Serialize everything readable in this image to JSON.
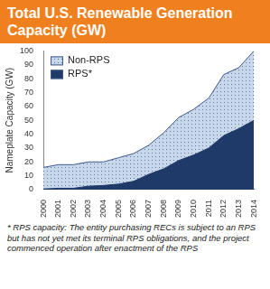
{
  "chart_data": {
    "type": "line",
    "stacked": true,
    "title": "Total U.S. Renewable Generation Capacity (GW)",
    "y_label": "Nameplate Capacity (GW)",
    "footnote": "* RPS capacity: The entity purchasing RECs is subject to an RPS but has not yet met its terminal RPS obligations, and the project commenced operation after enactment of the RPS",
    "categories": [
      "2000",
      "2001",
      "2002",
      "2003",
      "2004",
      "2005",
      "2006",
      "2007",
      "2008",
      "2009",
      "2010",
      "2011",
      "2012",
      "2013",
      "2014"
    ],
    "series": [
      {
        "name": "RPS*",
        "color": "#1f3a68",
        "values": [
          0.5,
          1,
          1,
          2.5,
          3,
          4,
          6,
          11,
          15,
          21,
          25,
          30,
          39,
          44,
          50
        ]
      },
      {
        "name": "Non-RPS",
        "color": "#c9d7ea",
        "values": [
          15.5,
          17,
          17,
          17.5,
          17,
          19,
          20,
          21,
          26,
          31,
          33,
          36,
          44,
          44,
          50
        ]
      }
    ],
    "ylim": [
      0,
      100
    ],
    "yticks": [
      0,
      10,
      20,
      30,
      40,
      50,
      60,
      70,
      80,
      90,
      100
    ],
    "grid": false,
    "legend": "upper left"
  }
}
